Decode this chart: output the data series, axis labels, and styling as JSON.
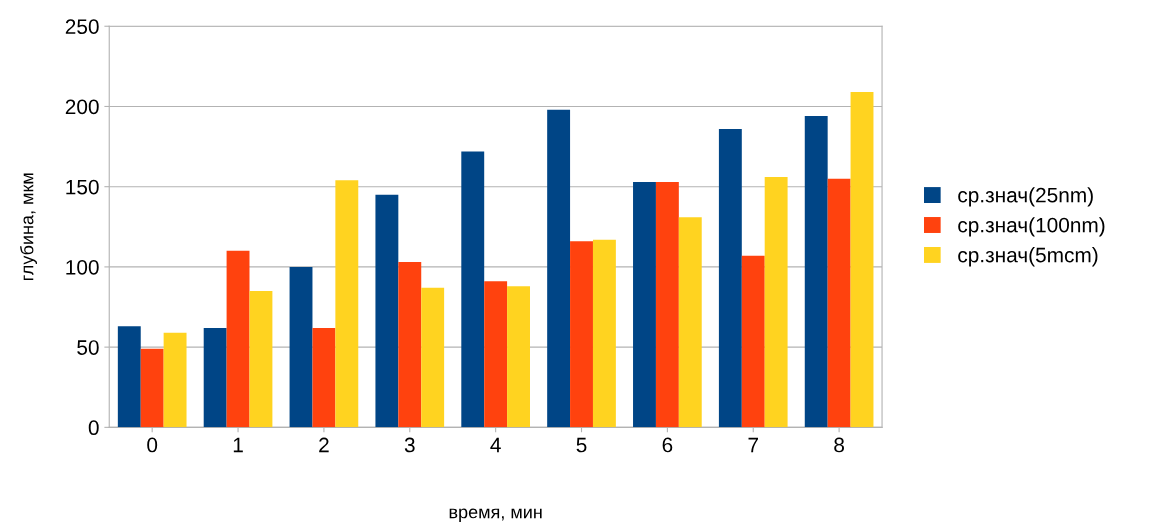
{
  "chart_data": {
    "type": "bar",
    "xlabel": "время, мин",
    "ylabel": "глубина, мкм",
    "categories": [
      "0",
      "1",
      "2",
      "3",
      "4",
      "5",
      "6",
      "7",
      "8"
    ],
    "series": [
      {
        "name": "ср.знач(25nm)",
        "color": "#004586",
        "values": [
          63,
          62,
          100,
          145,
          172,
          198,
          153,
          186,
          194
        ]
      },
      {
        "name": "ср.знач(100nm)",
        "color": "#ff420e",
        "values": [
          49,
          110,
          62,
          103,
          91,
          116,
          153,
          107,
          155
        ]
      },
      {
        "name": "ср.знач(5mcm)",
        "color": "#ffd320",
        "values": [
          59,
          85,
          154,
          87,
          88,
          117,
          131,
          156,
          209
        ]
      }
    ],
    "ylim": [
      0,
      250
    ],
    "yticks": [
      0,
      50,
      100,
      150,
      200,
      250
    ],
    "grid": "y",
    "legend": "right"
  }
}
